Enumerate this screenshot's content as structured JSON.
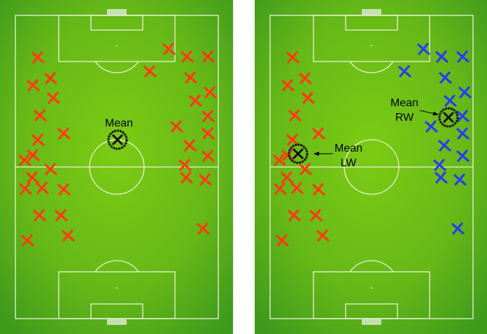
{
  "panels": [
    {
      "id": "all-wingers",
      "mean_label": "Mean",
      "mean_label_lines": [
        "Mean"
      ]
    },
    {
      "id": "split-wingers",
      "mean_lw_lines": [
        "Mean",
        "LW"
      ],
      "mean_rw_lines": [
        "Mean",
        "RW"
      ]
    }
  ],
  "colors": {
    "pitch_light": "#7ccb14",
    "pitch_dark": "#3f9a1c",
    "lines": "#e8f3d8",
    "marker_left_wing": "#ff3b12",
    "marker_right_wing_left_panel": "#ff3b12",
    "marker_right_wing_right_panel": "#2a3cf0",
    "mean_marker": "#111111"
  },
  "icons": {
    "marker": "x-cross-icon",
    "mean": "circled-x-icon",
    "goal": "goal-net-icon"
  }
}
